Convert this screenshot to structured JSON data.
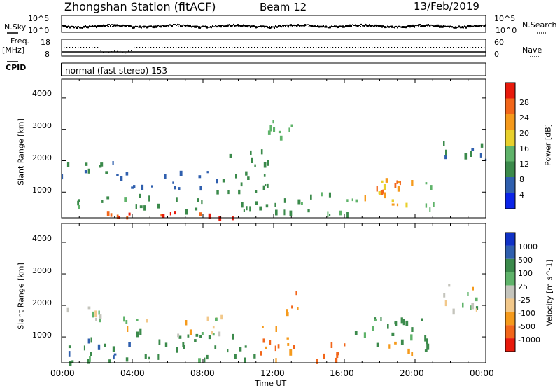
{
  "header": {
    "station": "Zhongshan Station (fitACF)",
    "beam": "Beam 12",
    "date": "13/Feb/2019"
  },
  "top_panels": {
    "nsky_label": "N.Sky",
    "nsky_ticks": [
      "10^5",
      "10^0"
    ],
    "nsearch_label": "N.Search",
    "nsearch_ticks": [
      "10^5",
      "10^0"
    ],
    "freq_label": "Freq.",
    "freq_unit": "[MHz]",
    "freq_ticks": [
      "18",
      "8"
    ],
    "nave_label": "Nave",
    "nave_ticks": [
      "60",
      "0"
    ],
    "cpid_label": "CPID",
    "cpid_text": "normal (fast stereo) 153"
  },
  "colors": {
    "power": [
      "#0b24e8",
      "#2f5fae",
      "#3b8a4b",
      "#5fb36a",
      "#e8d02c",
      "#f59a1c",
      "#f2661a",
      "#e81a0c"
    ],
    "velocity": [
      "#1032c6",
      "#2f5fae",
      "#3b8a4b",
      "#5fb36a",
      "#c4c4bc",
      "#f2c88a",
      "#f59a1c",
      "#f2661a",
      "#e81a0c"
    ]
  },
  "chart_data": [
    {
      "type": "heatmap",
      "title": "",
      "xlabel": "",
      "ylabel": "Slant Range [km]",
      "xlim": [
        0,
        24
      ],
      "ylim": [
        180,
        4600
      ],
      "x_ticks": [
        0,
        4,
        8,
        12,
        16,
        20,
        24
      ],
      "y_ticks": [
        "1000",
        "2000",
        "3000",
        "4000"
      ],
      "colorbar": {
        "label": "Power [dB]",
        "range": [
          0,
          32
        ],
        "ticks": [
          "4",
          "8",
          "12",
          "16",
          "20",
          "24",
          "28"
        ]
      },
      "regions": [
        {
          "x0": 0.0,
          "x1": 11.0,
          "y0": 200,
          "y1": 420,
          "value": 28
        },
        {
          "x0": 0.0,
          "x1": 4.0,
          "y0": 420,
          "y1": 900,
          "value": 12
        },
        {
          "x0": 4.0,
          "x1": 11.0,
          "y0": 420,
          "y1": 1100,
          "value": 10
        },
        {
          "x0": 0.0,
          "x1": 3.0,
          "y0": 1500,
          "y1": 2000,
          "value": 8
        },
        {
          "x0": 3.0,
          "x1": 9.0,
          "y0": 1100,
          "y1": 1700,
          "value": 6
        },
        {
          "x0": 9.0,
          "x1": 12.0,
          "y0": 1200,
          "y1": 2400,
          "value": 10
        },
        {
          "x0": 11.5,
          "x1": 13.0,
          "y0": 2400,
          "y1": 3300,
          "value": 14
        },
        {
          "x0": 11.0,
          "x1": 13.5,
          "y0": 400,
          "y1": 1200,
          "value": 10
        },
        {
          "x0": 13.5,
          "x1": 17.0,
          "y0": 300,
          "y1": 1000,
          "value": 12
        },
        {
          "x0": 17.0,
          "x1": 20.0,
          "y0": 600,
          "y1": 1700,
          "value": 20
        },
        {
          "x0": 17.5,
          "x1": 19.5,
          "y0": 1000,
          "y1": 1400,
          "value": 26
        },
        {
          "x0": 20.0,
          "x1": 21.5,
          "y0": 500,
          "y1": 1400,
          "value": 14
        },
        {
          "x0": 21.5,
          "x1": 24.0,
          "y0": 1900,
          "y1": 2700,
          "value": 8
        }
      ]
    },
    {
      "type": "heatmap",
      "title": "",
      "xlabel": "Time UT",
      "ylabel": "Slant Range [km]",
      "xlim": [
        0,
        24
      ],
      "ylim": [
        180,
        4600
      ],
      "x_ticks": [
        "00:00",
        "04:00",
        "08:00",
        "12:00",
        "16:00",
        "20:00",
        "00:00"
      ],
      "y_ticks": [
        "1000",
        "2000",
        "3000",
        "4000"
      ],
      "colorbar": {
        "label": "Velocity [m s^-1]",
        "ticks": [
          "1000",
          "500",
          "100",
          "25",
          "-25",
          "-100",
          "-500",
          "-1000"
        ]
      },
      "regions": [
        {
          "x0": 0.0,
          "x1": 11.0,
          "y0": 200,
          "y1": 420,
          "value": 100
        },
        {
          "x0": 0.0,
          "x1": 4.0,
          "y0": 420,
          "y1": 1000,
          "value": 300
        },
        {
          "x0": 4.0,
          "x1": 11.0,
          "y0": 420,
          "y1": 1100,
          "value": 200
        },
        {
          "x0": 0.0,
          "x1": 3.0,
          "y0": 1600,
          "y1": 2000,
          "value": 0
        },
        {
          "x0": 3.0,
          "x1": 9.0,
          "y0": 1100,
          "y1": 1700,
          "value": 0
        },
        {
          "x0": 11.0,
          "x1": 13.5,
          "y0": 300,
          "y1": 2500,
          "value": -300
        },
        {
          "x0": 13.5,
          "x1": 16.0,
          "y0": 300,
          "y1": 900,
          "value": -400
        },
        {
          "x0": 16.0,
          "x1": 20.5,
          "y0": 700,
          "y1": 1700,
          "value": 100
        },
        {
          "x0": 18.5,
          "x1": 20.0,
          "y0": 500,
          "y1": 1000,
          "value": -250
        },
        {
          "x0": 20.5,
          "x1": 21.5,
          "y0": 500,
          "y1": 1200,
          "value": 60
        },
        {
          "x0": 21.5,
          "x1": 24.0,
          "y0": 1900,
          "y1": 2700,
          "value": 0
        }
      ]
    }
  ]
}
